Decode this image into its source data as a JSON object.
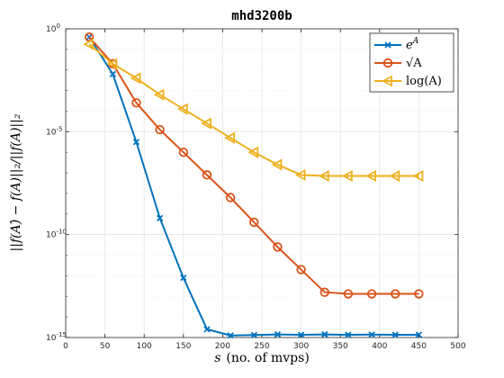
{
  "chart_data": {
    "type": "line",
    "title": "mhd3200b",
    "xlabel_main": "s",
    "xlabel_rest": "(no. of mvps)",
    "ylabel": "||f(A)̂ − f(A)||₂/||f(A)||₂",
    "xlim": [
      0,
      500
    ],
    "ylim_exponents": [
      -15,
      0
    ],
    "y_scale": "log",
    "grid": true,
    "legend_placement": "top-right",
    "x_ticks": [
      "0",
      "50",
      "100",
      "150",
      "200",
      "250",
      "300",
      "350",
      "400",
      "450",
      "500"
    ],
    "y_ticks": [
      {
        "base": "10",
        "exp": "0"
      },
      {
        "base": "10",
        "exp": "-5"
      },
      {
        "base": "10",
        "exp": "-10"
      },
      {
        "base": "10",
        "exp": "-15"
      }
    ],
    "x": [
      30,
      60,
      90,
      120,
      150,
      180,
      210,
      240,
      270,
      300,
      330,
      360,
      390,
      420,
      450
    ],
    "series": [
      {
        "name": "e^A",
        "legend_base": "e",
        "legend_sup": "A",
        "color": "#0072BD",
        "marker": "x",
        "log10_values": [
          -0.4,
          -2.2,
          -5.5,
          -9.2,
          -12.1,
          -14.6,
          -14.9,
          -14.88,
          -14.85,
          -14.87,
          -14.85,
          -14.87,
          -14.86,
          -14.87,
          -14.87
        ]
      },
      {
        "name": "√A",
        "legend_base": "√A",
        "color": "#D95319",
        "marker": "o",
        "log10_values": [
          -0.4,
          -1.7,
          -3.6,
          -4.9,
          -6.0,
          -7.1,
          -8.2,
          -9.4,
          -10.6,
          -11.7,
          -12.8,
          -12.88,
          -12.88,
          -12.88,
          -12.88
        ]
      },
      {
        "name": "log(A)",
        "legend_base": "log(A)",
        "color": "#EDB120",
        "marker": "triangle-left",
        "log10_values": [
          -0.75,
          -1.7,
          -2.4,
          -3.2,
          -3.9,
          -4.6,
          -5.3,
          -6.0,
          -6.6,
          -7.1,
          -7.15,
          -7.15,
          -7.15,
          -7.15,
          -7.15
        ]
      }
    ]
  }
}
